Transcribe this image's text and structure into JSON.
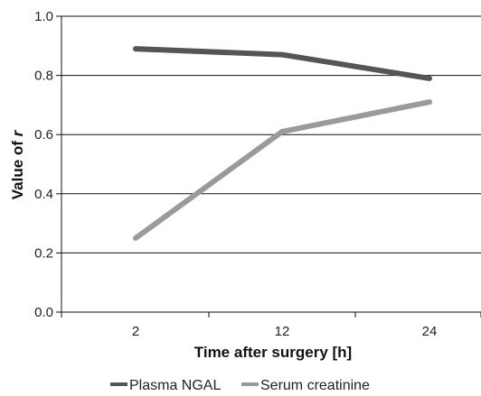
{
  "chart_data": {
    "type": "line",
    "categories": [
      "2",
      "12",
      "24"
    ],
    "xlabel": "Time after surgery [h]",
    "ylabel_main": "Value of ",
    "ylabel_italic": "r",
    "ylim": [
      0.0,
      1.0
    ],
    "yticks": [
      "0.0",
      "0.2",
      "0.4",
      "0.6",
      "0.8",
      "1.0"
    ],
    "grid": "horizontal",
    "legend_position": "bottom",
    "series": [
      {
        "name": "Plasma NGAL",
        "color": "#555555",
        "values": [
          0.89,
          0.87,
          0.79
        ]
      },
      {
        "name": "Serum creatinine",
        "color": "#9a9a9a",
        "values": [
          0.25,
          0.61,
          0.71
        ]
      }
    ]
  }
}
